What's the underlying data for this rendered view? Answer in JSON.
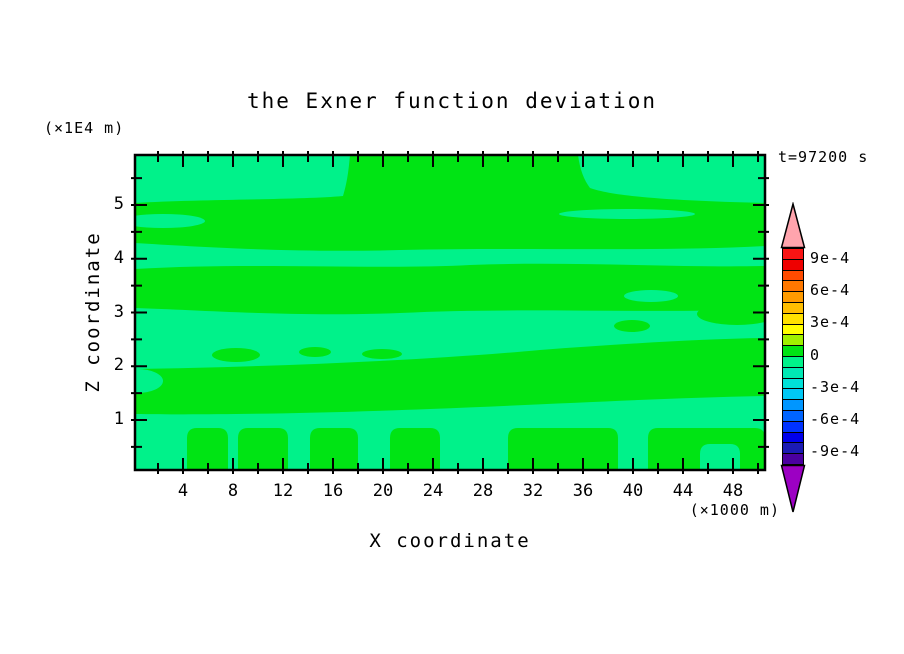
{
  "figure": {
    "title": "the Exner function deviation",
    "time_annotation": "t=97200 s",
    "y_unit_label": "(×1E4 m)",
    "x_unit_label": "(×1000 m)",
    "x_axis": {
      "label": "X coordinate",
      "tick_labels": [
        "4",
        "8",
        "12",
        "16",
        "20",
        "24",
        "28",
        "32",
        "36",
        "40",
        "44",
        "48"
      ]
    },
    "y_axis": {
      "label": "Z coordinate",
      "tick_labels": [
        "5",
        "4",
        "3",
        "2",
        "1"
      ]
    },
    "colorbar": {
      "labels": [
        "9e-4",
        "6e-4",
        "3e-4",
        "0",
        "-3e-4",
        "-6e-4",
        "-9e-4"
      ],
      "segment_colors": [
        "#f91414",
        "#ee0000",
        "#ff4b00",
        "#ff7800",
        "#ff9b00",
        "#ffbe00",
        "#ffe100",
        "#ffff00",
        "#a0f000",
        "#00e414",
        "#00f28a",
        "#00e8b4",
        "#00e1d8",
        "#00c8f5",
        "#0096ff",
        "#0064ff",
        "#0032ff",
        "#0000eb",
        "#1b1bb4",
        "#4b00a0"
      ],
      "over_color": "#ffa4ad",
      "under_color": "#9c00c3"
    },
    "colors": {
      "positive_green": "#00e414",
      "negative_mint": "#00f28a",
      "frame": "#000000"
    }
  },
  "chart_data": {
    "type": "heatmap",
    "title": "the Exner function deviation",
    "xlabel": "X coordinate",
    "ylabel": "Z coordinate",
    "x_unit": "×1000 m",
    "y_unit": "×1E4 m",
    "time_annotation": "t=97200 s",
    "xlim": [
      0,
      50
    ],
    "ylim": [
      0,
      5.9
    ],
    "x_ticks": [
      2,
      4,
      6,
      8,
      10,
      12,
      14,
      16,
      18,
      20,
      22,
      24,
      26,
      28,
      30,
      32,
      34,
      36,
      38,
      40,
      42,
      44,
      46,
      48,
      50
    ],
    "x_tick_labels_shown": [
      4,
      8,
      12,
      16,
      20,
      24,
      28,
      32,
      36,
      40,
      44,
      48
    ],
    "y_ticks": [
      0.5,
      1,
      1.5,
      2,
      2.5,
      3,
      3.5,
      4,
      4.5,
      5,
      5.5
    ],
    "y_tick_labels_shown": [
      1,
      2,
      3,
      4,
      5
    ],
    "contour_interval": 0.0001,
    "contour_levels": [
      -0.001,
      -0.0009,
      -0.0008,
      -0.0007,
      -0.0006,
      -0.0005,
      -0.0004,
      -0.0003,
      -0.0002,
      -0.0001,
      0,
      0.0001,
      0.0002,
      0.0003,
      0.0004,
      0.0005,
      0.0006,
      0.0007,
      0.0008,
      0.0009,
      0.001
    ],
    "colorbar_tick_values": [
      0.0009,
      0.0006,
      0.0003,
      0,
      -0.0003,
      -0.0006,
      -0.0009
    ],
    "value_range_displayed": [
      -0.0001,
      0.0001
    ],
    "legend_position": "right",
    "grid": false,
    "field_summary": "Exner function deviation is everywhere within ±1e-4; the section shows alternating horizontal layers of slightly positive (0..1e-4, green) and slightly negative (-1e-4..0, mint) values.",
    "bands": [
      {
        "z_from": 5.1,
        "z_to": 5.9,
        "sign": "negative",
        "note": "mint layer at top, interrupted by positive wedge near x=17-36"
      },
      {
        "z_from": 4.2,
        "z_to": 5.1,
        "sign": "positive"
      },
      {
        "z_from": 3.9,
        "z_to": 4.2,
        "sign": "negative"
      },
      {
        "z_from": 3.0,
        "z_to": 3.9,
        "sign": "positive"
      },
      {
        "z_from": 2.0,
        "z_to": 3.0,
        "sign": "negative",
        "note": "contains small positive lenses near x=6-10, x=14, x=45-50 and a negative lens near x=39-43 z=3.3"
      },
      {
        "z_from": 1.1,
        "z_to": 2.0,
        "sign": "positive",
        "note": "band slopes upward toward the right"
      },
      {
        "z_from": 0.8,
        "z_to": 1.1,
        "sign": "negative"
      },
      {
        "z_from": 0.0,
        "z_to": 0.8,
        "sign": "alternating",
        "note": "columnar convective pattern: green columns near x=4.5-7.5, 8.5-12.5, 14-18, 20.5-24.5, 30-38.5, 41-50 with mint gaps between and a mint dome near x=45-48.5"
      }
    ]
  }
}
